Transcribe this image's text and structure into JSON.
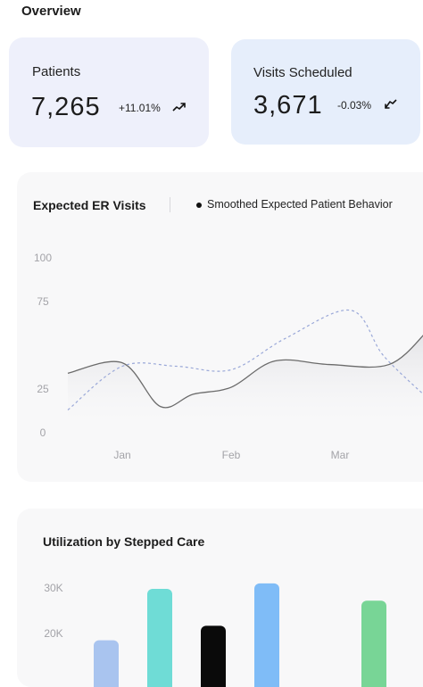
{
  "overview": {
    "title": "Overview"
  },
  "stats": {
    "patients": {
      "label": "Patients",
      "value": "7,265",
      "change": "+11.01%",
      "trend_icon": "trend-up-icon"
    },
    "visits": {
      "label": "Visits Scheduled",
      "value": "3,671",
      "change": "-0.03%",
      "trend_icon": "trend-down-icon"
    }
  },
  "er_chart": {
    "title": "Expected ER Visits",
    "legend_label": "Smoothed Expected Patient Behavior",
    "chart_data": {
      "type": "line",
      "x_ticks": [
        "Jan",
        "Feb",
        "Mar"
      ],
      "y_ticks": [
        0,
        25,
        75,
        100
      ],
      "ylim": [
        0,
        100
      ],
      "series": [
        {
          "style": "solid",
          "color": "#6b6b6b",
          "x": [
            -0.5,
            0.0,
            0.35,
            0.65,
            1.0,
            1.4,
            1.9,
            2.45,
            2.8
          ],
          "y": [
            34,
            40,
            15,
            22,
            26,
            41,
            39,
            39,
            58
          ]
        },
        {
          "name": "Smoothed Expected Patient Behavior",
          "style": "dashed",
          "color": "#9aa8d8",
          "x": [
            -0.5,
            0.0,
            0.5,
            1.0,
            1.5,
            2.1,
            2.4,
            2.8
          ],
          "y": [
            13,
            38,
            38,
            36,
            54,
            70,
            44,
            20
          ]
        }
      ]
    }
  },
  "utilization_chart": {
    "title": "Utilization by Stepped Care",
    "chart_data": {
      "type": "bar",
      "y_ticks": [
        "30K",
        "20K"
      ],
      "ylim": [
        15000,
        35000
      ],
      "values": [
        18500,
        29800,
        21700,
        31000,
        27200
      ],
      "colors": [
        "#a9c4ef",
        "#6fdcd6",
        "#0a0a0a",
        "#7fbcf7",
        "#78d596"
      ]
    }
  }
}
